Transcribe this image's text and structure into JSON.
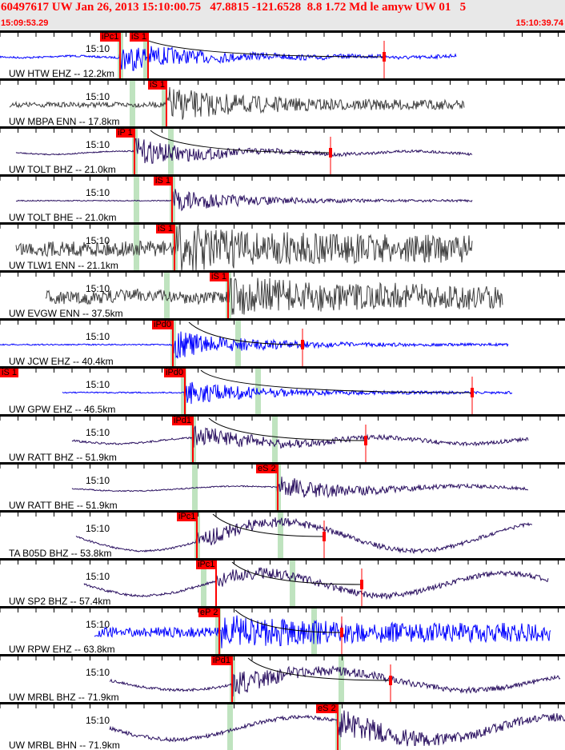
{
  "header": {
    "title": "60497617 UW Jan 26, 2013 15:10:00.75   47.8815 -121.6528  8.8 1.72 Md le amyw UW 01   5",
    "start_time": "15:09:53.29",
    "end_time": "15:10:39.74"
  },
  "colors": {
    "header_bg": "#e8e8e8",
    "header_text": "#ff0000",
    "pick": "#ff0000",
    "window": "#bfe3bf",
    "blue": "#0000ff",
    "gray": "#404040",
    "purple": "#2a1060"
  },
  "time_mark": "15:10",
  "channels": [
    {
      "label": "UW HTW EHZ -- 12.2km",
      "color": "blue",
      "picks": [
        "iPc1",
        "iS 1"
      ]
    },
    {
      "label": "UW MBPA ENN -- 17.8km",
      "color": "gray",
      "picks": [
        "iS 1"
      ]
    },
    {
      "label": "UW TOLT BHZ -- 21.0km",
      "color": "purple",
      "picks": [
        "iP 1"
      ]
    },
    {
      "label": "UW TOLT BHE -- 21.0km",
      "color": "purple",
      "picks": [
        "iS 1"
      ]
    },
    {
      "label": "UW TLW1 ENN -- 21.1km",
      "color": "gray",
      "picks": [
        "iS 1"
      ]
    },
    {
      "label": "UW EVGW ENN -- 37.5km",
      "color": "gray",
      "picks": [
        "iS 1"
      ]
    },
    {
      "label": "UW JCW EHZ -- 40.4km",
      "color": "blue",
      "picks": [
        "iPd0"
      ]
    },
    {
      "label": "UW GPW EHZ -- 46.5km",
      "color": "blue",
      "picks": [
        "iPd0",
        "iS 1"
      ]
    },
    {
      "label": "UW RATT BHZ -- 51.9km",
      "color": "purple",
      "picks": [
        "iPd1"
      ]
    },
    {
      "label": "UW RATT BHE -- 51.9km",
      "color": "purple",
      "picks": [
        "eS 2"
      ]
    },
    {
      "label": "TA B05D BHZ -- 53.8km",
      "color": "purple",
      "picks": [
        "iPc1"
      ]
    },
    {
      "label": "UW SP2 BHZ -- 57.4km",
      "color": "purple",
      "picks": [
        "iPc1"
      ]
    },
    {
      "label": "UW RPW EHZ -- 63.8km",
      "color": "blue",
      "picks": [
        "eP 2"
      ]
    },
    {
      "label": "UW MRBL BHZ -- 71.9km",
      "color": "purple",
      "picks": [
        "iPd1"
      ]
    },
    {
      "label": "UW MRBL BHN -- 71.9km",
      "color": "purple",
      "picks": [
        "eS 2"
      ]
    }
  ]
}
